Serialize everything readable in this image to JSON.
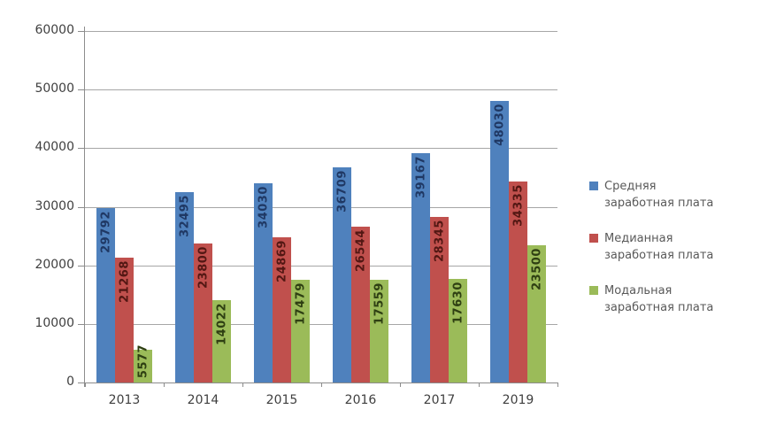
{
  "chart_data": {
    "type": "bar",
    "categories": [
      "2013",
      "2014",
      "2015",
      "2016",
      "2017",
      "2019"
    ],
    "series": [
      {
        "name": "Средняя заработная плата",
        "color": "#4f81bd",
        "label_color": "#1f3864",
        "values": [
          29792,
          32495,
          34030,
          36709,
          39167,
          48030
        ]
      },
      {
        "name": "Медианная заработная плата",
        "color": "#c0504d",
        "label_color": "#521713",
        "values": [
          21268,
          23800,
          24869,
          26544,
          28345,
          34335
        ]
      },
      {
        "name": "Модальная заработная плата",
        "color": "#9bbb59",
        "label_color": "#2e3f12",
        "values": [
          5577,
          14022,
          17479,
          17559,
          17630,
          23500
        ]
      }
    ],
    "ylim": [
      0,
      60000
    ],
    "ytick_step": 10000,
    "yticks": [
      "0",
      "10000",
      "20000",
      "30000",
      "40000",
      "50000",
      "60000"
    ],
    "grid": true,
    "legend_position": "right",
    "data_labels": "inside-end-rotated"
  },
  "colors": {
    "background": "#ffffff",
    "gridline": "#a6a6a6",
    "axis": "#8c8c8c",
    "axis_text": "#3f3f3f",
    "legend_text": "#595959"
  }
}
